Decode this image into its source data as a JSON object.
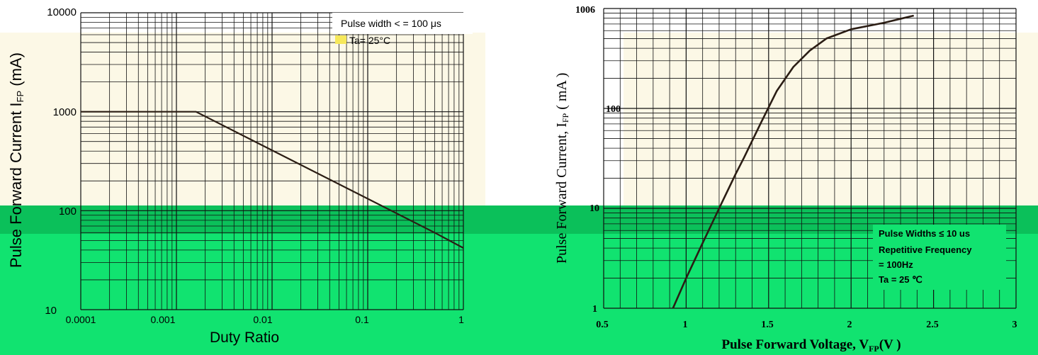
{
  "colors": {
    "panel_beige": "#fcf8e6",
    "green_band": "#11e370",
    "green_dark": "#0bc05a",
    "grid": "#111111",
    "curve": "#2b1d14"
  },
  "chart_data": [
    {
      "type": "line",
      "scale": "log-log",
      "title": "",
      "xlabel": "Duty Ratio",
      "ylabel": "Pulse Forward Current I_FP (mA)",
      "ylabel_parts": [
        "Pulse For",
        "ward Current",
        " I",
        "FP",
        " (mA)"
      ],
      "x_ticks": [
        "0.0001",
        "0.001",
        "0.01",
        "0.1",
        "1"
      ],
      "y_ticks": [
        "10",
        "100",
        "1000",
        "10000"
      ],
      "xlim": [
        0.0001,
        1
      ],
      "ylim": [
        10,
        10000
      ],
      "annotations": [
        "Pulse width < =  100 μs",
        "Ta= 25°C"
      ],
      "series": [
        {
          "x": [
            0.0001,
            0.0016,
            0.5,
            1
          ],
          "y": [
            1000,
            1000,
            60,
            42
          ]
        }
      ]
    },
    {
      "type": "line",
      "scale": "semilog-y",
      "title": "",
      "xlabel": "Pulse Forward Voltage, V_FP(V )",
      "xlabel_parts": [
        "Pulse Forward Voltage, V",
        "FP",
        "(V )"
      ],
      "ylabel": "Pulse Forward Current, I_FP ( mA )",
      "ylabel_parts": [
        "Pulse For",
        "ward Current, I",
        "FP",
        " ( mA )"
      ],
      "x_ticks": [
        "0.5",
        "1",
        "1.5",
        "2",
        "2.5",
        "3"
      ],
      "y_ticks": [
        "1",
        "10",
        "100",
        "1000"
      ],
      "y_tick_top_shown": "1006",
      "xlim": [
        0.5,
        3
      ],
      "ylim": [
        1,
        1000
      ],
      "annotations": [
        "Pulse Widths ≤ 10 us",
        "Repetitive Frequency",
        "= 100Hz",
        "Ta = 25 ℃"
      ],
      "series": [
        {
          "x": [
            0.92,
            1.0,
            1.1,
            1.2,
            1.3,
            1.35,
            1.45,
            1.55,
            1.65,
            1.75,
            1.85,
            2.0,
            2.2,
            2.38
          ],
          "y": [
            1,
            2.0,
            4.5,
            10,
            22,
            32,
            70,
            150,
            260,
            380,
            500,
            620,
            720,
            850
          ]
        }
      ]
    }
  ]
}
